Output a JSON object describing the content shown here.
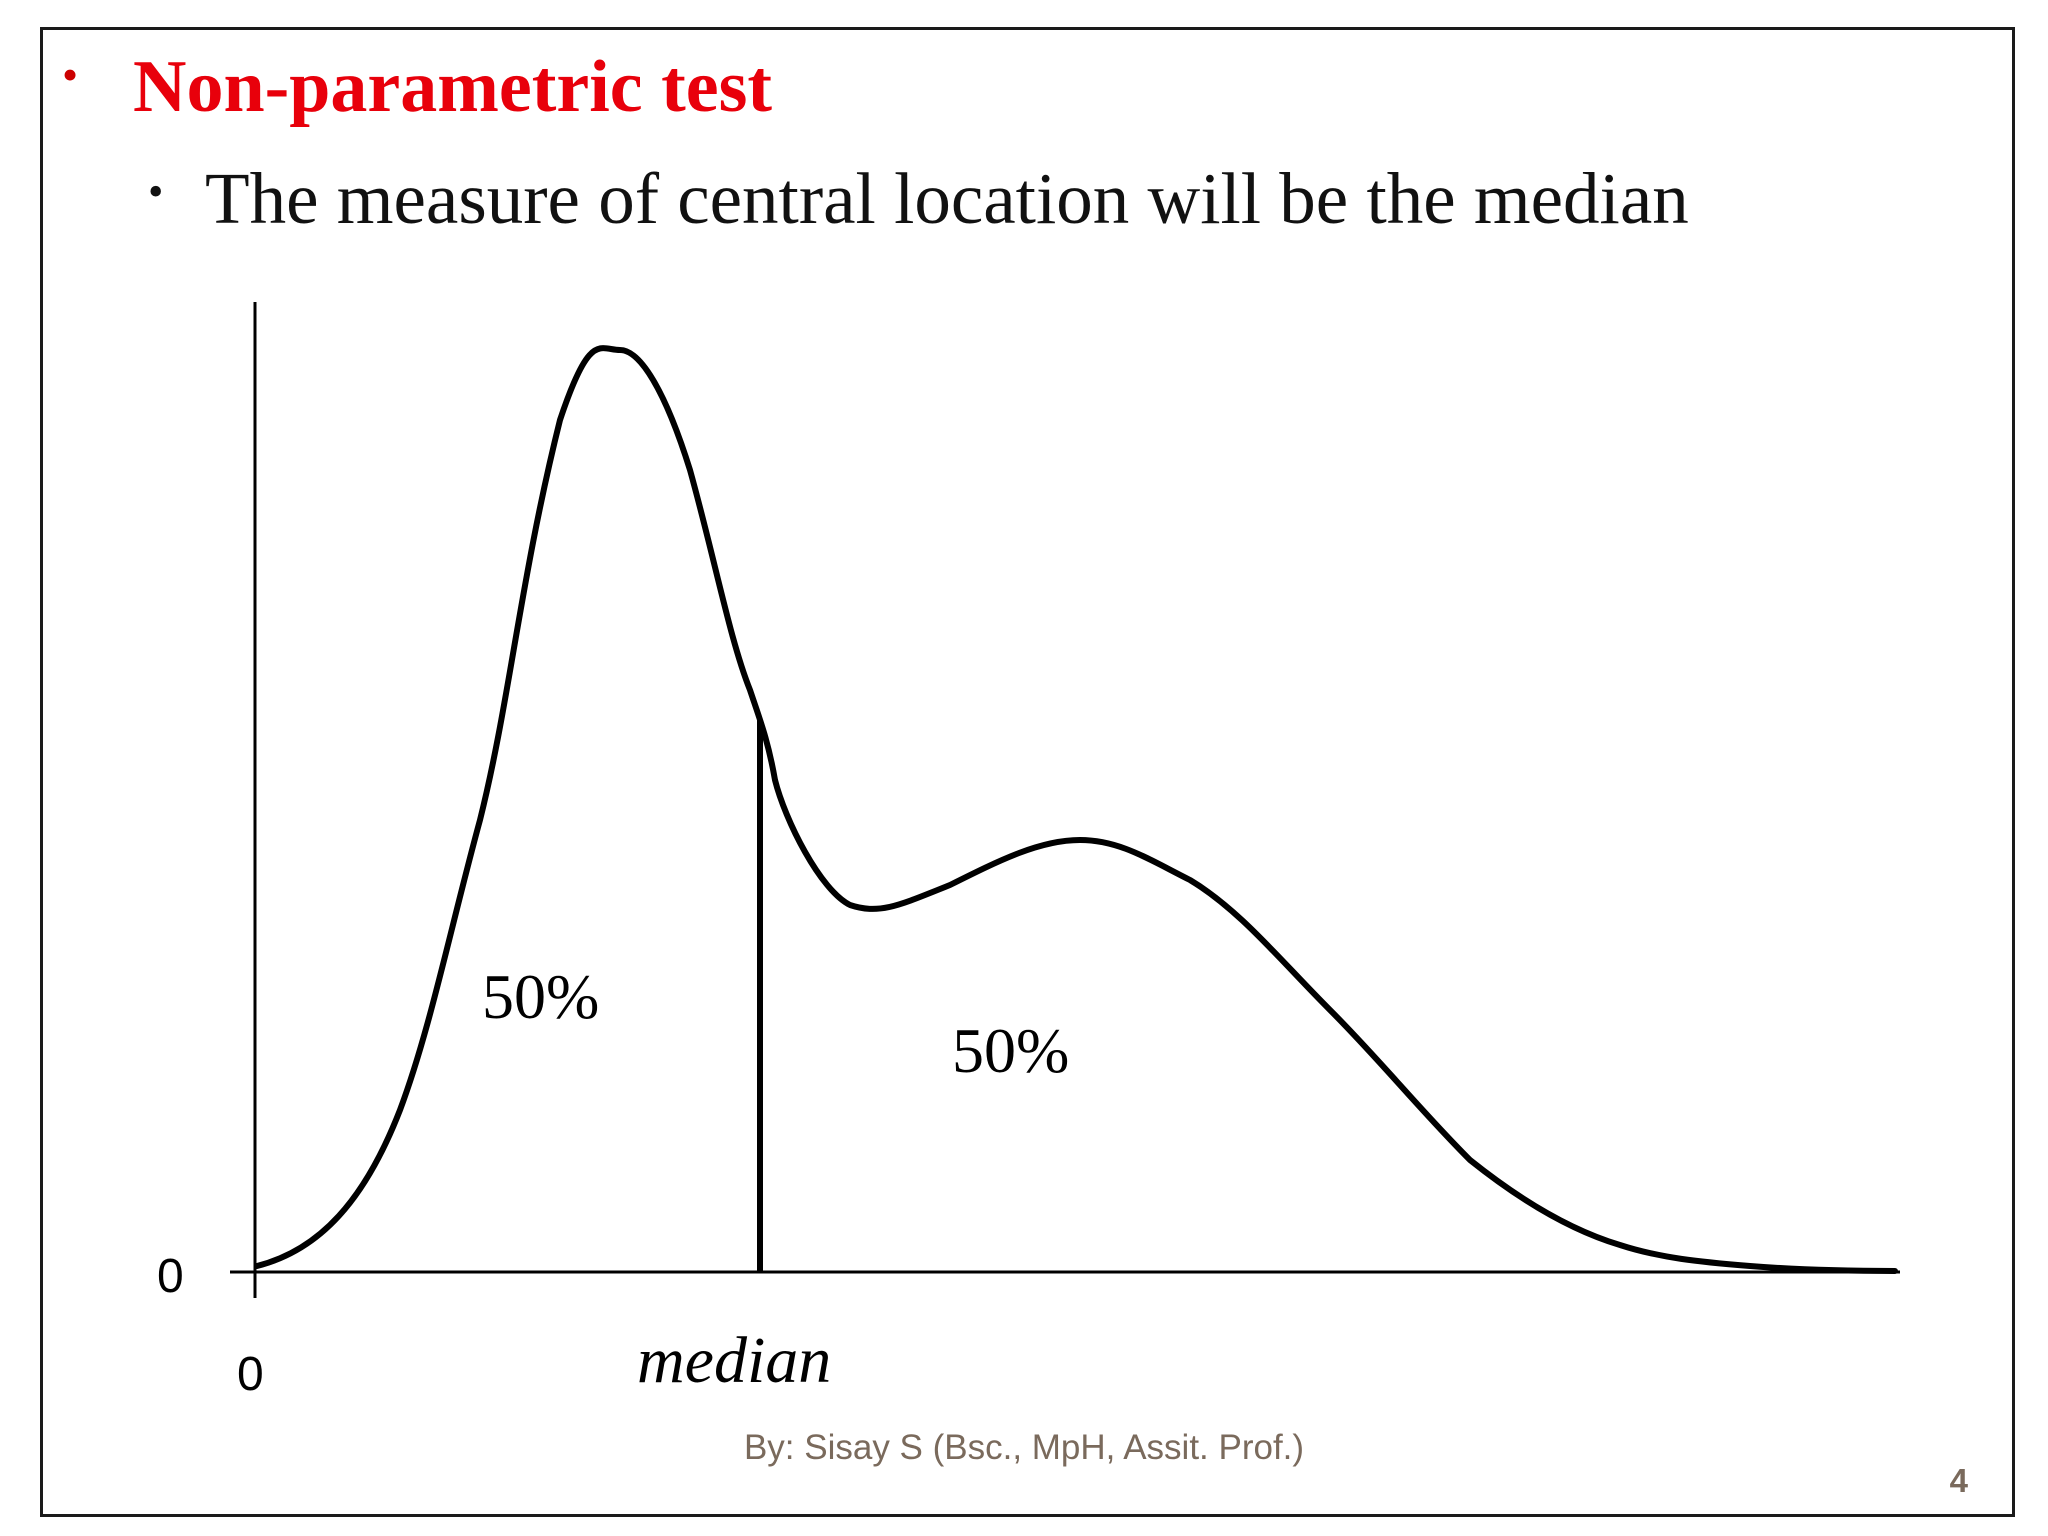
{
  "slide": {
    "heading": "Non-parametric test",
    "subpoint": "The measure of central location will be the median",
    "bullet_symbol": "•",
    "heading_color": "#e8000b",
    "footer": "By: Sisay S (Bsc., MpH, Assit. Prof.)",
    "page_number": "4"
  },
  "diagram": {
    "y_zero_label": "0",
    "x_zero_label": "0",
    "median_label": "median",
    "left_area_label": "50%",
    "right_area_label": "50%"
  }
}
